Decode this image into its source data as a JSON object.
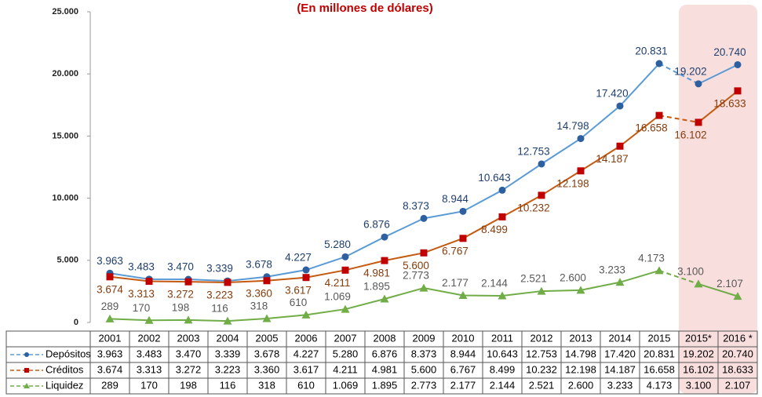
{
  "chart_data": {
    "type": "line",
    "title": "(En millones de dólares)",
    "categories": [
      "2001",
      "2002",
      "2003",
      "2004",
      "2005",
      "2006",
      "2007",
      "2008",
      "2009",
      "2010",
      "2011",
      "2012",
      "2013",
      "2014",
      "2015",
      "2015*",
      "2016 *"
    ],
    "ylim": [
      0,
      25000
    ],
    "yticks": [
      0,
      {
        "value": 5000,
        "label": "5.000"
      },
      {
        "value": 10000,
        "label": "10.000"
      },
      {
        "value": 15000,
        "label": "15.000"
      },
      {
        "value": 20000,
        "label": "20.000"
      },
      {
        "value": 25000,
        "label": "25.000"
      }
    ],
    "series": [
      {
        "name": "Depósitos",
        "color": "#5b9bd5",
        "marker": "circle",
        "marker_color": "#2e5f9e",
        "label_color": "#1f3f6e",
        "label_position": "above",
        "values": [
          3963,
          3483,
          3470,
          3339,
          3678,
          4227,
          5280,
          6876,
          8373,
          8944,
          10643,
          12753,
          14798,
          17420,
          20831,
          19202,
          20740
        ],
        "value_labels": [
          "3.963",
          "3.483",
          "3.470",
          "3.339",
          "3.678",
          "4.227",
          "5.280",
          "6.876",
          "8.373",
          "8.944",
          "10.643",
          "12.753",
          "14.798",
          "17.420",
          "20.831",
          "19.202",
          "20.740"
        ]
      },
      {
        "name": "Créditos",
        "color": "#c55a11",
        "marker": "square",
        "marker_color": "#c00000",
        "label_color": "#843c0c",
        "label_position": "below",
        "values": [
          3674,
          3313,
          3272,
          3223,
          3360,
          3617,
          4211,
          4981,
          5600,
          6767,
          8499,
          10232,
          12198,
          14187,
          16658,
          16102,
          18633
        ],
        "value_labels": [
          "3.674",
          "3.313",
          "3.272",
          "3.223",
          "3.360",
          "3.617",
          "4.211",
          "4.981",
          "5.600",
          "6.767",
          "8.499",
          "10.232",
          "12.198",
          "14.187",
          "16.658",
          "16.102",
          "18.633"
        ]
      },
      {
        "name": "Liquidez",
        "color": "#70ad47",
        "marker": "triangle",
        "marker_color": "#70ad47",
        "label_color": "#595959",
        "label_position": "above",
        "values": [
          289,
          170,
          198,
          116,
          318,
          610,
          1069,
          1895,
          2773,
          2177,
          2144,
          2521,
          2600,
          3233,
          4173,
          3100,
          2107
        ],
        "value_labels": [
          "289",
          "170",
          "198",
          "116",
          "318",
          "610",
          "1.069",
          "1.895",
          "2.773",
          "2.177",
          "2.144",
          "2.521",
          "2.600",
          "3.233",
          "4.173",
          "3.100",
          "2.107"
        ]
      }
    ]
  }
}
